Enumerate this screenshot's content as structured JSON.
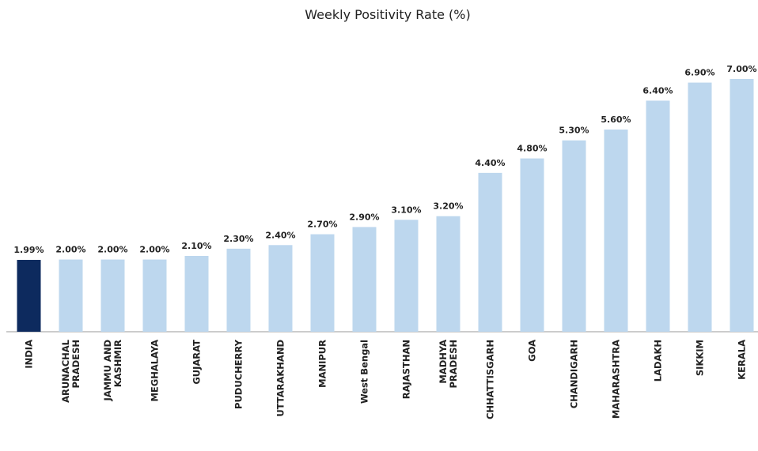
{
  "chart_data": {
    "type": "bar",
    "title": "Weekly Positivity Rate (%)",
    "categories": [
      "INDIA",
      "ARUNACHAL\nPRADESH",
      "JAMMU AND\nKASHMIR",
      "MEGHALAYA",
      "GUJARAT",
      "PUDUCHERRY",
      "UTTARAKHAND",
      "MANIPUR",
      "West Bengal",
      "RAJASTHAN",
      "MADHYA\nPRADESH",
      "CHHATTISGARH",
      "GOA",
      "CHANDIGARH",
      "MAHARASHTRA",
      "LADAKH",
      "SIKKIM",
      "KERALA"
    ],
    "values": [
      1.99,
      2.0,
      2.0,
      2.0,
      2.1,
      2.3,
      2.4,
      2.7,
      2.9,
      3.1,
      3.2,
      4.4,
      4.8,
      5.3,
      5.6,
      6.4,
      6.9,
      7.0
    ],
    "value_labels": [
      "1.99%",
      "2.00%",
      "2.00%",
      "2.00%",
      "2.10%",
      "2.30%",
      "2.40%",
      "2.70%",
      "2.90%",
      "3.10%",
      "3.20%",
      "4.40%",
      "4.80%",
      "5.30%",
      "5.60%",
      "6.40%",
      "6.90%",
      "7.00%"
    ],
    "colors": [
      "#0d2a5e",
      "#bdd7ee",
      "#bdd7ee",
      "#bdd7ee",
      "#bdd7ee",
      "#bdd7ee",
      "#bdd7ee",
      "#bdd7ee",
      "#bdd7ee",
      "#bdd7ee",
      "#bdd7ee",
      "#bdd7ee",
      "#bdd7ee",
      "#bdd7ee",
      "#bdd7ee",
      "#bdd7ee",
      "#bdd7ee",
      "#bdd7ee"
    ],
    "ylim": [
      0,
      7
    ]
  }
}
